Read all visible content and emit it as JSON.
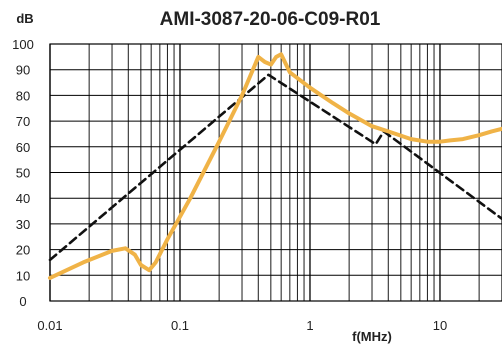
{
  "chart_data": {
    "type": "line",
    "title": "AMI-3087-20-06-C09-R01",
    "ylabel": "dB",
    "xlabel": "f(MHz)",
    "xscale": "log",
    "xlim": [
      0.01,
      30
    ],
    "ylim": [
      0,
      100
    ],
    "x_ticks": [
      "0.01",
      "0.1",
      "1",
      "10"
    ],
    "y_ticks": [
      "0",
      "10",
      "20",
      "30",
      "40",
      "50",
      "60",
      "70",
      "80",
      "90",
      "100"
    ],
    "grid": true,
    "legend": "none",
    "series": [
      {
        "style": "dashed",
        "color": "#111111",
        "x": [
          0.01,
          0.48,
          3.2,
          3.7,
          30
        ],
        "y": [
          16,
          88,
          61,
          66,
          32
        ]
      },
      {
        "style": "solid",
        "color": "#f0b347",
        "x": [
          0.01,
          0.018,
          0.03,
          0.038,
          0.045,
          0.05,
          0.058,
          0.065,
          0.08,
          0.12,
          0.2,
          0.3,
          0.4,
          0.45,
          0.5,
          0.55,
          0.6,
          0.7,
          1.0,
          1.5,
          2.0,
          3.0,
          4.0,
          6.0,
          8.0,
          10.0,
          12.0,
          15.0,
          20.0,
          25.0,
          30.0
        ],
        "y": [
          9,
          15,
          19.5,
          20.5,
          18,
          14,
          12,
          15,
          24,
          40,
          62,
          80,
          95,
          93,
          92,
          95,
          96,
          89,
          83,
          77,
          73,
          68,
          66,
          63,
          62,
          62,
          62.5,
          63,
          64.5,
          66,
          67
        ]
      }
    ]
  }
}
